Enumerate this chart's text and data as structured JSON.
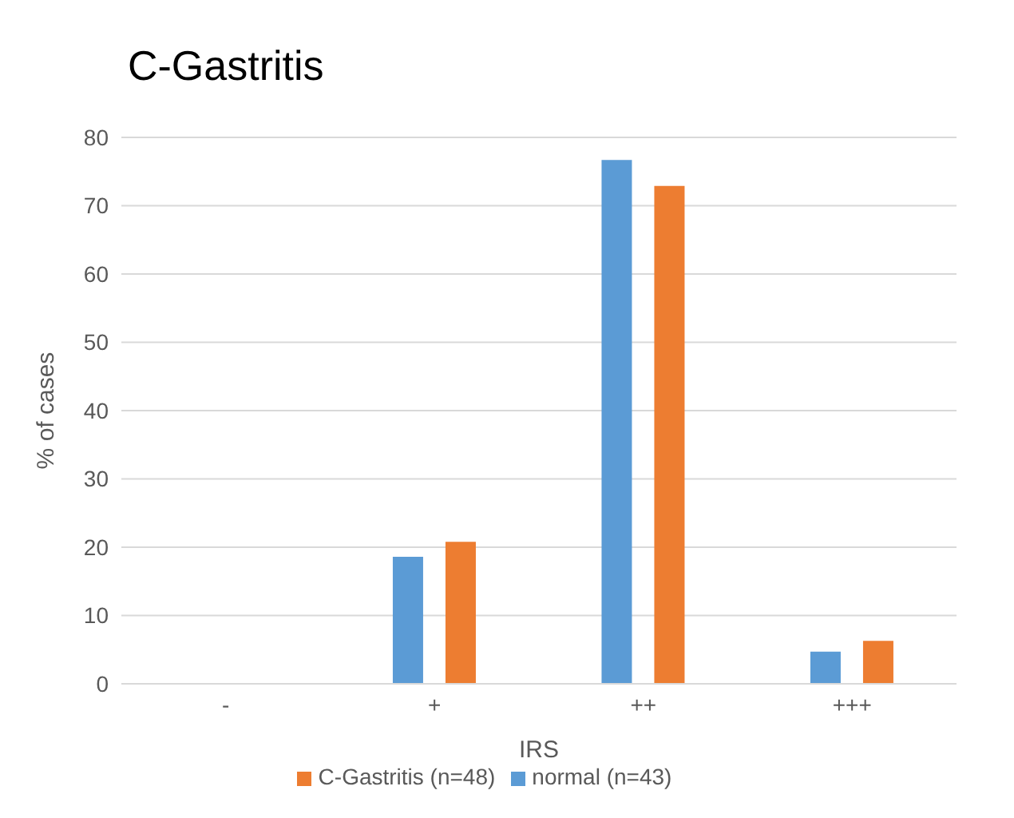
{
  "chart_data": {
    "type": "bar",
    "title": "C-Gastritis",
    "xlabel": "IRS",
    "ylabel": "% of cases",
    "categories": [
      "-",
      "+",
      "++",
      "+++"
    ],
    "series": [
      {
        "name": "normal (n=43)",
        "color": "#5b9bd5",
        "values": [
          0,
          18.6,
          76.7,
          4.7
        ]
      },
      {
        "name": "C-Gastritis (n=48)",
        "color": "#ed7d31",
        "values": [
          0,
          20.8,
          72.9,
          6.3
        ]
      }
    ],
    "ylim": [
      0,
      80
    ],
    "yticks": [
      0,
      10,
      20,
      30,
      40,
      50,
      60,
      70,
      80
    ],
    "grid": "y",
    "legend": "bottom"
  }
}
